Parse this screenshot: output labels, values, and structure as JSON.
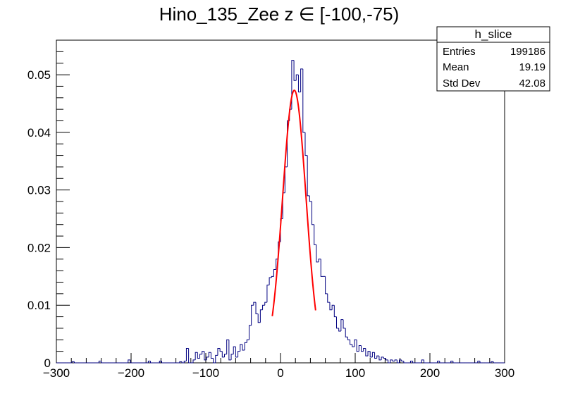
{
  "chart_data": {
    "type": "histogram",
    "title": "Hino_135_Zee z  ∈ [-100,-75)",
    "xlim": [
      -300,
      300
    ],
    "ylim": [
      0,
      0.056
    ],
    "x_ticks": [
      -300,
      -200,
      -100,
      0,
      100,
      200,
      300
    ],
    "x_tick_labels": [
      "−300",
      "−200",
      "−100",
      "0",
      "100",
      "200",
      "300"
    ],
    "y_ticks": [
      0,
      0.01,
      0.02,
      0.03,
      0.04,
      0.05
    ],
    "y_tick_labels": [
      "0",
      "0.01",
      "0.02",
      "0.03",
      "0.04",
      "0.05"
    ],
    "grid": false,
    "histogram_color": "#000080",
    "fit_color": "#ff0000",
    "histogram": {
      "name": "h_slice",
      "bin_width": 3,
      "x_start": -300,
      "nonzero_bins": [
        [
          -279,
          0.0002
        ],
        [
          -243,
          0.0003
        ],
        [
          -204,
          0.0005
        ],
        [
          -177,
          0.0003
        ],
        [
          -162,
          0.0003
        ],
        [
          -135,
          0.0002
        ],
        [
          -129,
          0.0003
        ],
        [
          -126,
          0.0025
        ],
        [
          -117,
          0.0005
        ],
        [
          -114,
          0.0018
        ],
        [
          -111,
          0.0008
        ],
        [
          -108,
          0.0015
        ],
        [
          -105,
          0.002
        ],
        [
          -102,
          0.0005
        ],
        [
          -99,
          0.001
        ],
        [
          -96,
          0.0018
        ],
        [
          -93,
          0.0008
        ],
        [
          -87,
          0.0013
        ],
        [
          -84,
          0.0025
        ],
        [
          -81,
          0.002
        ],
        [
          -78,
          0.001
        ],
        [
          -75,
          0.0015
        ],
        [
          -72,
          0.004
        ],
        [
          -69,
          0.0005
        ],
        [
          -66,
          0.0015
        ],
        [
          -63,
          0.0028
        ],
        [
          -60,
          0.001
        ],
        [
          -57,
          0.002
        ],
        [
          -54,
          0.0032
        ],
        [
          -51,
          0.0022
        ],
        [
          -48,
          0.0035
        ],
        [
          -45,
          0.004
        ],
        [
          -42,
          0.0065
        ],
        [
          -39,
          0.01
        ],
        [
          -36,
          0.0105
        ],
        [
          -33,
          0.0085
        ],
        [
          -30,
          0.007
        ],
        [
          -27,
          0.0092
        ],
        [
          -24,
          0.01
        ],
        [
          -21,
          0.0105
        ],
        [
          -18,
          0.0135
        ],
        [
          -15,
          0.0148
        ],
        [
          -12,
          0.015
        ],
        [
          -9,
          0.0162
        ],
        [
          -6,
          0.018
        ],
        [
          -3,
          0.021
        ],
        [
          0,
          0.025
        ],
        [
          3,
          0.0295
        ],
        [
          6,
          0.034
        ],
        [
          9,
          0.042
        ],
        [
          12,
          0.044
        ],
        [
          15,
          0.0525
        ],
        [
          18,
          0.049
        ],
        [
          21,
          0.05
        ],
        [
          24,
          0.047
        ],
        [
          27,
          0.051
        ],
        [
          30,
          0.04
        ],
        [
          33,
          0.036
        ],
        [
          36,
          0.029
        ],
        [
          39,
          0.028
        ],
        [
          42,
          0.024
        ],
        [
          45,
          0.0205
        ],
        [
          48,
          0.0175
        ],
        [
          51,
          0.018
        ],
        [
          54,
          0.015
        ],
        [
          57,
          0.015
        ],
        [
          60,
          0.012
        ],
        [
          63,
          0.0105
        ],
        [
          66,
          0.0092
        ],
        [
          69,
          0.01
        ],
        [
          72,
          0.008
        ],
        [
          75,
          0.006
        ],
        [
          78,
          0.0055
        ],
        [
          81,
          0.0075
        ],
        [
          84,
          0.006
        ],
        [
          87,
          0.0045
        ],
        [
          90,
          0.004
        ],
        [
          93,
          0.0032
        ],
        [
          96,
          0.0028
        ],
        [
          99,
          0.004
        ],
        [
          102,
          0.002
        ],
        [
          105,
          0.003
        ],
        [
          108,
          0.002
        ],
        [
          111,
          0.0025
        ],
        [
          114,
          0.0012
        ],
        [
          117,
          0.002
        ],
        [
          120,
          0.001
        ],
        [
          123,
          0.0018
        ],
        [
          126,
          0.0008
        ],
        [
          129,
          0.0012
        ],
        [
          132,
          0.0005
        ],
        [
          135,
          0.001
        ],
        [
          138,
          0.0008
        ],
        [
          141,
          0.0005
        ],
        [
          147,
          0.0005
        ],
        [
          150,
          0.0003
        ],
        [
          153,
          0.0005
        ],
        [
          159,
          0.0005
        ],
        [
          162,
          0.0003
        ],
        [
          174,
          0.0003
        ],
        [
          189,
          0.0005
        ],
        [
          210,
          0.0003
        ],
        [
          228,
          0.0003
        ],
        [
          264,
          0.0003
        ],
        [
          282,
          0.0002
        ]
      ]
    },
    "fit": {
      "type": "gaussian",
      "amplitude": 0.0473,
      "mean": 18.5,
      "sigma": 15.7,
      "x_range": [
        -11,
        47
      ]
    },
    "stats_box": {
      "name": "h_slice",
      "rows": [
        {
          "label": "Entries",
          "value": "199186"
        },
        {
          "label": "Mean",
          "value": "19.19"
        },
        {
          "label": "Std Dev",
          "value": "42.08"
        }
      ]
    }
  }
}
